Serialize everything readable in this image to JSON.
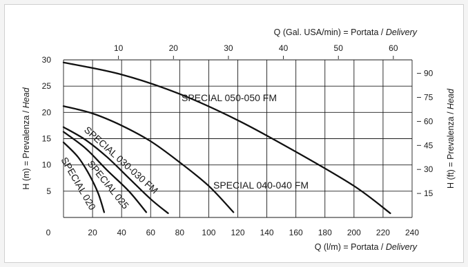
{
  "chart_data": {
    "type": "line",
    "x_bottom": {
      "label_prefix": "Q (l/m) = Portata / ",
      "label_italic": "Delivery",
      "range": [
        0,
        240
      ],
      "ticks": [
        0,
        20,
        40,
        60,
        80,
        100,
        120,
        140,
        160,
        180,
        200,
        220,
        240
      ]
    },
    "x_top": {
      "label_prefix": "Q (Gal. USA/min) = Portata / ",
      "label_italic": "Delivery",
      "ticks": [
        10,
        20,
        30,
        40,
        50,
        60
      ],
      "liters_per_unit": 3.785
    },
    "y_left": {
      "label_prefix": "H (m) = Prevalenza / ",
      "label_italic": "Head",
      "range": [
        0,
        30
      ],
      "ticks": [
        5,
        10,
        15,
        20,
        25,
        30
      ]
    },
    "y_right": {
      "label_prefix": "H (ft) = Prevalenza / ",
      "label_italic": "Head",
      "ticks": [
        15,
        30,
        45,
        60,
        75,
        90
      ],
      "meters_per_unit": 0.3048
    },
    "grid": true,
    "series": [
      {
        "name": "SPECIAL 020",
        "label_rotate": 60,
        "points": [
          [
            0,
            14.3
          ],
          [
            10,
            11.5
          ],
          [
            18,
            8
          ],
          [
            24,
            4.5
          ],
          [
            28,
            1
          ]
        ]
      },
      {
        "name": "SPECIAL 025",
        "label_rotate": 51,
        "points": [
          [
            0,
            16.3
          ],
          [
            15,
            13.2
          ],
          [
            30,
            9
          ],
          [
            45,
            5
          ],
          [
            57,
            1
          ]
        ]
      },
      {
        "name": "SPECIAL 030-030 FM",
        "label_rotate": 42,
        "points": [
          [
            0,
            17.2
          ],
          [
            15,
            14.8
          ],
          [
            30,
            11.5
          ],
          [
            45,
            7.5
          ],
          [
            60,
            3.5
          ],
          [
            72,
            0.8
          ]
        ]
      },
      {
        "name": "SPECIAL 040-040 FM",
        "label_rotate": 0,
        "points": [
          [
            0,
            21.2
          ],
          [
            20,
            19.8
          ],
          [
            40,
            17.5
          ],
          [
            60,
            14.5
          ],
          [
            80,
            10.5
          ],
          [
            100,
            6
          ],
          [
            117,
            1
          ]
        ]
      },
      {
        "name": "SPECIAL 050-050 FM",
        "label_rotate": 0,
        "points": [
          [
            0,
            29.5
          ],
          [
            40,
            27.2
          ],
          [
            80,
            23.5
          ],
          [
            120,
            18.5
          ],
          [
            160,
            12.5
          ],
          [
            200,
            6
          ],
          [
            225,
            0.8
          ]
        ]
      }
    ]
  }
}
